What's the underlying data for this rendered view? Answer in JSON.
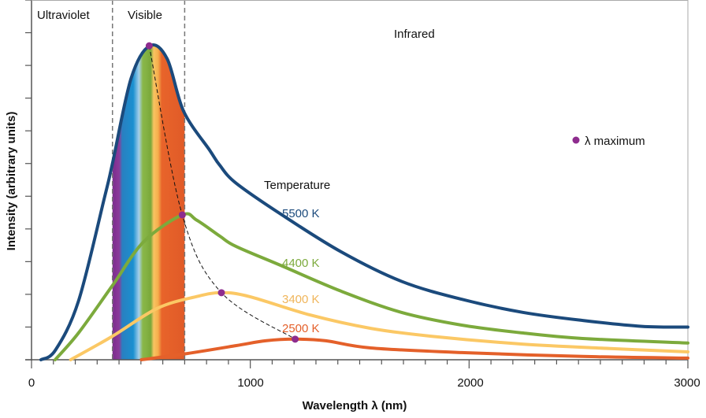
{
  "chart_data": {
    "type": "line",
    "xlabel": "Wavelength λ (nm)",
    "ylabel": "Intensity (arbitrary units)",
    "xlim": [
      0,
      3000
    ],
    "ylim": [
      0,
      11
    ],
    "x_ticks": [
      "0",
      "1000",
      "2000",
      "3000"
    ],
    "x_tick_values": [
      0,
      1000,
      2000,
      3000
    ],
    "x_minor_tick_step": 100,
    "y_tick_step": 1,
    "y_tick_labels_shown": false,
    "grid": false,
    "regions": [
      {
        "label": "Ultraviolet",
        "from": 0,
        "to": 370
      },
      {
        "label": "Visible",
        "from": 370,
        "to": 700
      },
      {
        "label": "Infrared",
        "from": 700,
        "to": 3000
      }
    ],
    "legend_title": "Temperature",
    "legend": {
      "marker_label": "λ maximum",
      "marker_color": "#8e2c8e",
      "placement": "right"
    },
    "series": [
      {
        "name": "5500 K",
        "color": "#1b4a7c",
        "x": [
          43,
          110,
          215,
          335,
          370,
          455,
          540,
          620,
          695,
          815,
          860,
          935,
          1140,
          1415,
          1690,
          1965,
          2245,
          2520,
          2790,
          3000
        ],
        "y": [
          0,
          0.3,
          1.8,
          5.0,
          6.0,
          8.6,
          9.6,
          9.2,
          7.6,
          6.4,
          5.95,
          5.4,
          4.45,
          3.3,
          2.4,
          1.85,
          1.45,
          1.2,
          1.02,
          1.0
        ],
        "peak": [
          538,
          9.6
        ]
      },
      {
        "name": "4400 K",
        "color": "#7caa3c",
        "x": [
          108,
          215,
          370,
          513,
          689,
          755,
          861,
          933,
          1137,
          1414,
          1690,
          1966,
          2243,
          2519,
          3000
        ],
        "y": [
          0,
          0.82,
          2.27,
          3.61,
          4.43,
          4.27,
          3.78,
          3.47,
          2.89,
          2.1,
          1.45,
          1.06,
          0.82,
          0.65,
          0.51
        ],
        "peak": [
          689,
          4.43
        ]
      },
      {
        "name": "3400 K",
        "color": "#fbc865",
        "x": [
          179,
          370,
          574,
          753,
          868,
          997,
          1273,
          1550,
          1826,
          2243,
          2655,
          3000
        ],
        "y": [
          0,
          0.72,
          1.57,
          1.93,
          2.05,
          1.93,
          1.37,
          0.96,
          0.72,
          0.48,
          0.34,
          0.24
        ],
        "peak": [
          868,
          2.05
        ]
      },
      {
        "name": "2500 K",
        "color": "#e4602a",
        "x": [
          502,
          692,
          933,
          1070,
          1205,
          1345,
          1550,
          1966,
          2519,
          3000
        ],
        "y": [
          0,
          0.17,
          0.43,
          0.58,
          0.63,
          0.58,
          0.36,
          0.22,
          0.1,
          0.05
        ],
        "peak": [
          1205,
          0.63
        ]
      }
    ]
  }
}
